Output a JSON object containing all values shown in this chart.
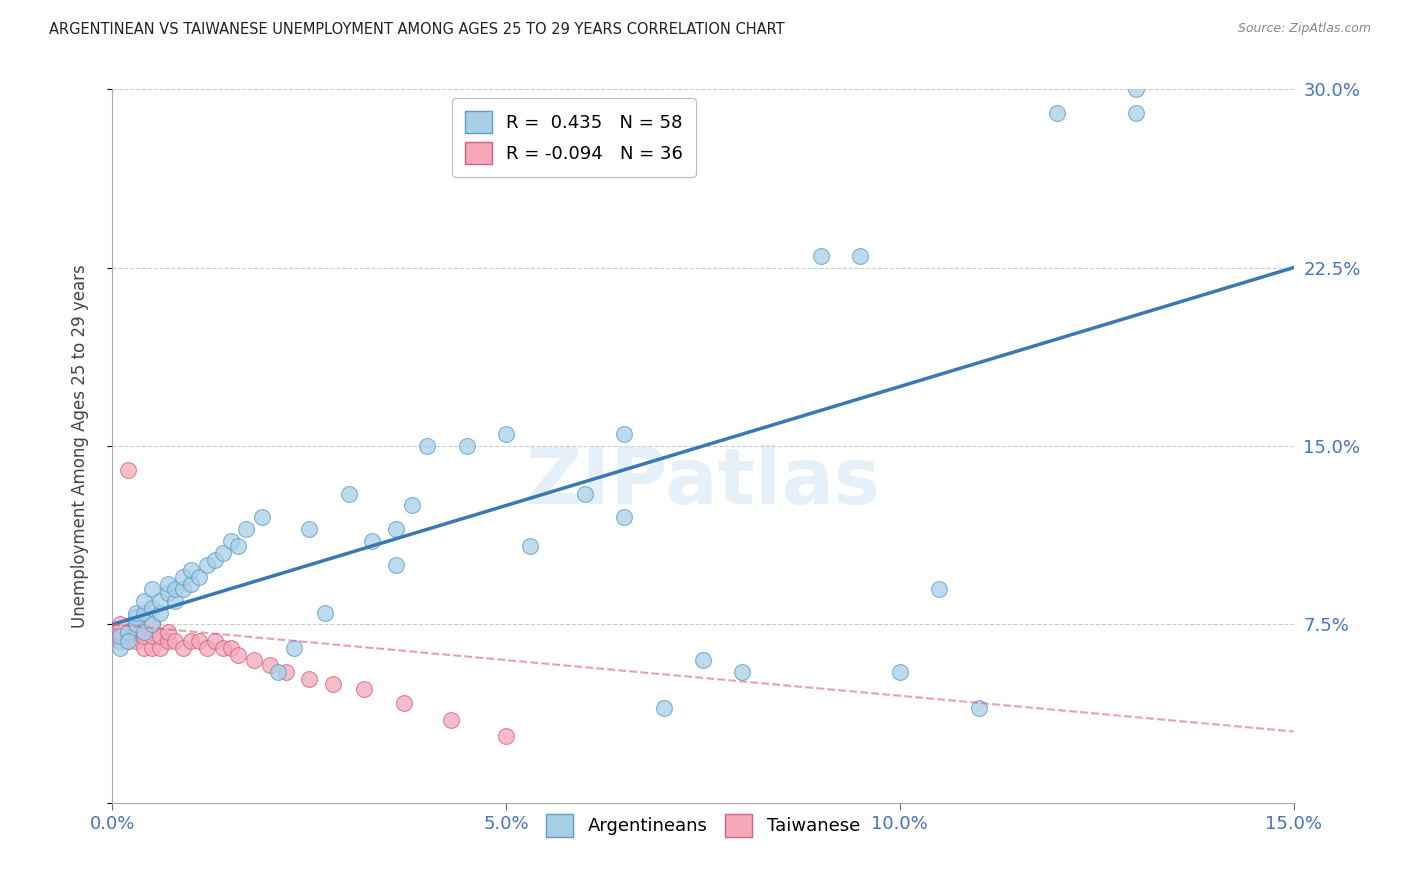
{
  "title": "ARGENTINEAN VS TAIWANESE UNEMPLOYMENT AMONG AGES 25 TO 29 YEARS CORRELATION CHART",
  "source": "Source: ZipAtlas.com",
  "ylabel": "Unemployment Among Ages 25 to 29 years",
  "xlim": [
    0.0,
    0.15
  ],
  "ylim": [
    0.0,
    0.3
  ],
  "xticks": [
    0.0,
    0.05,
    0.1,
    0.15
  ],
  "xtick_labels": [
    "0.0%",
    "5.0%",
    "10.0%",
    "15.0%"
  ],
  "yticks": [
    0.0,
    0.075,
    0.15,
    0.225,
    0.3
  ],
  "ytick_labels": [
    "",
    "7.5%",
    "15.0%",
    "22.5%",
    "30.0%"
  ],
  "legend_R_blue": "R =  0.435",
  "legend_N_blue": "N = 58",
  "legend_R_pink": "R = -0.094",
  "legend_N_pink": "N = 36",
  "legend_label_blue": "Argentineans",
  "legend_label_pink": "Taiwanese",
  "blue_color": "#a8cfe8",
  "blue_edge_color": "#5b9dc9",
  "blue_line_color": "#3878b4",
  "pink_color": "#f4a8b8",
  "pink_edge_color": "#d96080",
  "pink_line_color": "#d96080",
  "tick_color": "#4472c4",
  "watermark": "ZIPatlas",
  "blue_line_x0": 0.0,
  "blue_line_y0": 0.075,
  "blue_line_x1": 0.15,
  "blue_line_y1": 0.225,
  "pink_line_x0": 0.0,
  "pink_line_y0": 0.075,
  "pink_line_x1": 0.15,
  "pink_line_y1": 0.03,
  "blue_x": [
    0.001,
    0.001,
    0.002,
    0.002,
    0.003,
    0.003,
    0.003,
    0.004,
    0.004,
    0.004,
    0.005,
    0.005,
    0.005,
    0.006,
    0.006,
    0.007,
    0.007,
    0.008,
    0.008,
    0.009,
    0.009,
    0.01,
    0.01,
    0.011,
    0.012,
    0.013,
    0.014,
    0.015,
    0.016,
    0.017,
    0.019,
    0.021,
    0.023,
    0.025,
    0.027,
    0.03,
    0.033,
    0.036,
    0.036,
    0.038,
    0.04,
    0.045,
    0.05,
    0.053,
    0.06,
    0.065,
    0.065,
    0.07,
    0.075,
    0.08,
    0.09,
    0.095,
    0.1,
    0.105,
    0.11,
    0.12,
    0.13,
    0.13
  ],
  "blue_y": [
    0.065,
    0.07,
    0.072,
    0.068,
    0.075,
    0.078,
    0.08,
    0.072,
    0.08,
    0.085,
    0.075,
    0.082,
    0.09,
    0.08,
    0.085,
    0.088,
    0.092,
    0.085,
    0.09,
    0.09,
    0.095,
    0.092,
    0.098,
    0.095,
    0.1,
    0.102,
    0.105,
    0.11,
    0.108,
    0.115,
    0.12,
    0.055,
    0.065,
    0.115,
    0.08,
    0.13,
    0.11,
    0.1,
    0.115,
    0.125,
    0.15,
    0.15,
    0.155,
    0.108,
    0.13,
    0.12,
    0.155,
    0.04,
    0.06,
    0.055,
    0.23,
    0.23,
    0.055,
    0.09,
    0.04,
    0.29,
    0.3,
    0.29
  ],
  "pink_x": [
    0.001,
    0.001,
    0.001,
    0.002,
    0.002,
    0.002,
    0.003,
    0.003,
    0.003,
    0.004,
    0.004,
    0.005,
    0.005,
    0.005,
    0.006,
    0.006,
    0.007,
    0.007,
    0.008,
    0.009,
    0.01,
    0.011,
    0.012,
    0.013,
    0.014,
    0.015,
    0.016,
    0.018,
    0.02,
    0.022,
    0.025,
    0.028,
    0.032,
    0.037,
    0.043,
    0.05
  ],
  "pink_y": [
    0.068,
    0.072,
    0.075,
    0.068,
    0.072,
    0.14,
    0.068,
    0.072,
    0.075,
    0.065,
    0.07,
    0.065,
    0.07,
    0.075,
    0.065,
    0.07,
    0.068,
    0.072,
    0.068,
    0.065,
    0.068,
    0.068,
    0.065,
    0.068,
    0.065,
    0.065,
    0.062,
    0.06,
    0.058,
    0.055,
    0.052,
    0.05,
    0.048,
    0.042,
    0.035,
    0.028
  ]
}
